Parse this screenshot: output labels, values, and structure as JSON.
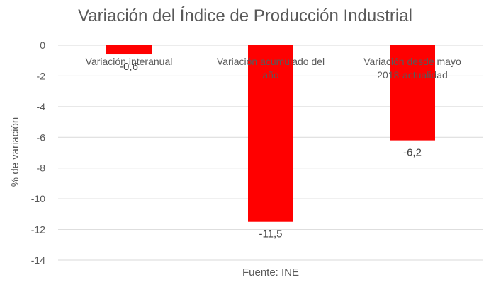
{
  "chart_data": {
    "type": "bar",
    "title": "Variación del Índice de Producción Industrial",
    "xlabel": "Fuente: INE",
    "ylabel": "% de variación",
    "categories": [
      "Variación interanual",
      "Variación acumulado del año",
      "Variación desde mayo 2018-actualidad"
    ],
    "category_lines": [
      [
        "Variación interanual"
      ],
      [
        "Variación acumulado del",
        "año"
      ],
      [
        "Variación desde mayo",
        "2018-actualidad"
      ]
    ],
    "values": [
      -0.6,
      -11.5,
      -6.2
    ],
    "data_labels": [
      "-0,6",
      "-11,5",
      "-6,2"
    ],
    "ylim": [
      -14,
      0
    ],
    "yticks": [
      0,
      -2,
      -4,
      -6,
      -8,
      -10,
      -12,
      -14
    ],
    "ytick_labels": [
      "0",
      "-2",
      "-4",
      "-6",
      "-8",
      "-10",
      "-12",
      "-14"
    ],
    "grid": true,
    "colors": {
      "bar": "#ff0000",
      "grid": "#d9d9d9",
      "text": "#595959"
    }
  }
}
